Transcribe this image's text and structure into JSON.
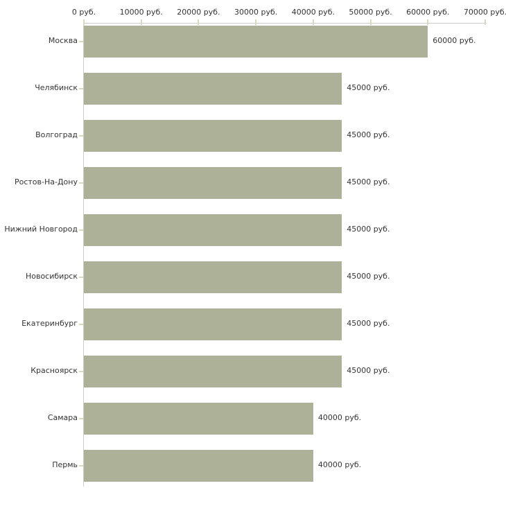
{
  "chart": {
    "colors": {
      "background": "#ffffff",
      "bar": "#acb197",
      "axis_line": "#cccccc",
      "tick": "#d9dab9",
      "text": "#333333"
    }
  },
  "chart_data": {
    "type": "bar",
    "orientation": "horizontal",
    "title": "",
    "xlabel": "",
    "ylabel": "",
    "grid": false,
    "legend_position": "none",
    "xlim": [
      0,
      70000
    ],
    "x_tick_values": [
      0,
      10000,
      20000,
      30000,
      40000,
      50000,
      60000,
      70000
    ],
    "x_tick_labels": [
      "0 руб.",
      "10000 руб.",
      "20000 руб.",
      "30000 руб.",
      "40000 руб.",
      "50000 руб.",
      "60000 руб.",
      "70000 руб."
    ],
    "categories": [
      "Москва",
      "Челябинск",
      "Волгоград",
      "Ростов-На-Дону",
      "Нижний Новгород",
      "Новосибирск",
      "Екатеринбург",
      "Красноярск",
      "Самара",
      "Пермь"
    ],
    "values": [
      60000,
      45000,
      45000,
      45000,
      45000,
      45000,
      45000,
      45000,
      40000,
      40000
    ],
    "value_labels": [
      "60000 руб.",
      "45000 руб.",
      "45000 руб.",
      "45000 руб.",
      "45000 руб.",
      "45000 руб.",
      "45000 руб.",
      "45000 руб.",
      "40000 руб.",
      "40000 руб."
    ]
  }
}
